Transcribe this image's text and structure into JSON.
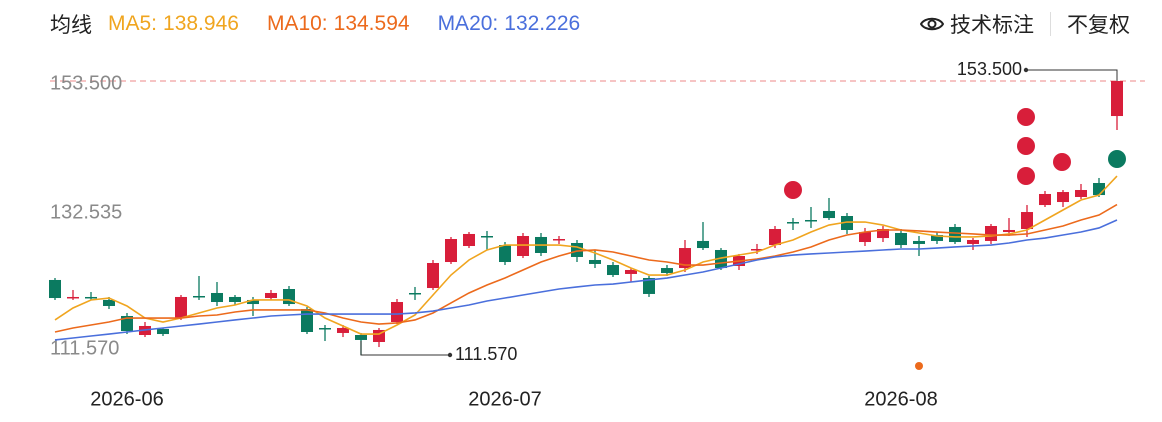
{
  "header": {
    "ma_title": "均线",
    "annotate_button": "技术标注",
    "adjust_button": "不复权"
  },
  "chart_data": {
    "type": "candlestick",
    "categories": [
      null,
      null,
      null,
      null,
      "2026-06",
      null,
      null,
      null,
      null,
      null,
      null,
      null,
      null,
      null,
      null,
      null,
      null,
      null,
      null,
      null,
      null,
      null,
      null,
      null,
      null,
      "2026-07",
      null,
      null,
      null,
      null,
      null,
      null,
      null,
      null,
      null,
      null,
      null,
      null,
      null,
      null,
      null,
      null,
      null,
      null,
      null,
      null,
      null,
      "2026-08",
      null,
      null,
      null,
      null,
      null,
      null,
      null,
      null,
      null,
      null,
      null,
      null
    ],
    "open": [
      123.05,
      120.29,
      120.45,
      119.99,
      117.54,
      114.63,
      115.55,
      117.23,
      120.6,
      121.06,
      120.45,
      119.99,
      120.29,
      121.67,
      118.61,
      115.7,
      114.94,
      114.63,
      113.56,
      116.62,
      121.06,
      121.82,
      125.8,
      128.25,
      129.78,
      128.4,
      126.72,
      129.63,
      129.17,
      128.71,
      126.11,
      125.34,
      123.97,
      123.35,
      124.88,
      124.88,
      129.02,
      127.64,
      125.19,
      127.64,
      128.4,
      131.92,
      132.23,
      133.61,
      132.84,
      128.86,
      129.47,
      130.24,
      129.02,
      129.93,
      131.16,
      128.56,
      129.02,
      130.39,
      130.85,
      134.52,
      134.98,
      135.75,
      137.89,
      148.14
    ],
    "high": [
      123.35,
      121.52,
      121.21,
      120.45,
      118.0,
      116.62,
      115.7,
      120.75,
      123.66,
      122.74,
      120.75,
      120.45,
      121.52,
      122.13,
      118.92,
      116.16,
      116.16,
      114.94,
      115.7,
      120.14,
      121.98,
      126.11,
      129.63,
      130.39,
      130.55,
      128.86,
      130.24,
      130.24,
      129.78,
      129.17,
      127.64,
      125.8,
      124.88,
      123.66,
      125.34,
      129.17,
      131.92,
      127.94,
      127.03,
      128.56,
      131.31,
      132.53,
      134.22,
      135.6,
      133.3,
      131.01,
      131.31,
      130.85,
      129.78,
      130.39,
      131.62,
      129.47,
      131.62,
      132.53,
      134.52,
      136.67,
      136.82,
      137.74,
      138.66,
      153.5
    ],
    "low": [
      119.99,
      119.99,
      119.99,
      118.61,
      114.78,
      114.32,
      114.48,
      116.93,
      119.99,
      119.07,
      119.22,
      117.54,
      119.99,
      119.07,
      114.78,
      113.71,
      114.32,
      111.57,
      112.79,
      116.31,
      119.99,
      121.52,
      125.5,
      127.94,
      127.64,
      125.34,
      126.41,
      126.72,
      128.56,
      125.8,
      124.88,
      123.51,
      122.74,
      120.45,
      123.66,
      124.27,
      127.64,
      124.58,
      124.58,
      127.03,
      127.94,
      130.7,
      131.01,
      132.23,
      130.09,
      128.25,
      128.86,
      127.94,
      126.72,
      128.56,
      128.56,
      127.64,
      128.56,
      129.78,
      129.63,
      134.22,
      134.22,
      135.44,
      135.75,
      146.0
    ],
    "close": [
      120.29,
      120.45,
      120.29,
      119.07,
      115.24,
      116.01,
      114.78,
      120.45,
      120.45,
      119.68,
      119.68,
      119.37,
      121.06,
      119.37,
      115.09,
      115.55,
      115.7,
      113.87,
      115.4,
      119.68,
      120.91,
      125.65,
      129.32,
      130.09,
      129.63,
      125.8,
      129.78,
      127.18,
      129.32,
      126.57,
      125.5,
      123.81,
      124.58,
      120.91,
      124.12,
      127.94,
      127.94,
      124.88,
      126.72,
      127.79,
      130.85,
      131.77,
      132.08,
      132.53,
      130.7,
      130.39,
      130.85,
      128.4,
      128.56,
      129.02,
      128.86,
      129.17,
      131.31,
      130.7,
      133.45,
      136.21,
      136.51,
      136.82,
      136.05,
      153.5
    ],
    "up_color": "#d81e3a",
    "down_color": "#0b7a60",
    "series": [
      {
        "name": "MA5:",
        "color": "#f0a51f",
        "values": [
          116.93,
          118.76,
          119.99,
          120.29,
          119.07,
          117.23,
          116.62,
          117.23,
          118.0,
          118.76,
          119.22,
          119.99,
          119.99,
          119.99,
          119.07,
          117.23,
          116.01,
          114.78,
          114.78,
          116.16,
          117.69,
          120.75,
          123.81,
          126.11,
          127.64,
          128.4,
          128.4,
          128.4,
          128.4,
          128.1,
          127.18,
          126.11,
          124.88,
          123.81,
          123.81,
          124.58,
          125.8,
          126.41,
          126.87,
          127.33,
          128.4,
          129.17,
          130.39,
          131.46,
          131.92,
          131.92,
          131.46,
          130.7,
          130.24,
          129.78,
          129.63,
          129.63,
          129.78,
          130.09,
          130.7,
          132.23,
          133.76,
          135.29,
          136.05,
          138.946
        ]
      },
      {
        "name": "MA10:",
        "color": "#ec6a1c",
        "values": [
          115.09,
          115.7,
          116.16,
          116.62,
          117.23,
          117.23,
          117.23,
          117.23,
          117.54,
          117.69,
          118.15,
          118.46,
          118.46,
          118.46,
          118.46,
          118.0,
          117.23,
          116.62,
          116.31,
          116.47,
          116.93,
          118.0,
          119.53,
          121.06,
          122.28,
          123.35,
          124.58,
          125.8,
          126.72,
          127.48,
          127.64,
          127.33,
          126.72,
          126.11,
          125.8,
          125.34,
          125.34,
          125.65,
          125.95,
          126.26,
          126.72,
          127.33,
          128.1,
          129.17,
          129.93,
          130.39,
          130.7,
          130.7,
          130.55,
          130.39,
          130.24,
          130.09,
          129.93,
          129.93,
          130.09,
          130.7,
          131.31,
          132.23,
          132.99,
          134.594
        ]
      },
      {
        "name": "MA20:",
        "color": "#4a6fdc",
        "values": [
          113.87,
          114.17,
          114.48,
          114.78,
          115.09,
          115.4,
          115.7,
          116.01,
          116.31,
          116.62,
          116.93,
          117.23,
          117.54,
          117.69,
          117.84,
          117.84,
          117.84,
          117.84,
          117.84,
          117.84,
          118.0,
          118.3,
          118.76,
          119.22,
          119.83,
          120.29,
          120.75,
          121.21,
          121.67,
          121.98,
          122.28,
          122.43,
          122.74,
          123.05,
          123.35,
          123.81,
          124.27,
          124.88,
          125.5,
          126.11,
          126.57,
          126.87,
          127.03,
          127.18,
          127.33,
          127.48,
          127.64,
          127.79,
          127.79,
          127.94,
          128.1,
          128.25,
          128.4,
          128.71,
          129.17,
          129.47,
          129.93,
          130.39,
          131.01,
          132.226
        ]
      }
    ],
    "ylim": [
      111.57,
      153.5
    ],
    "yticks": [
      {
        "value": 111.57,
        "label": "111.570"
      },
      {
        "value": 132.535,
        "label": "132.535"
      },
      {
        "value": 153.5,
        "label": "153.500"
      }
    ],
    "max_label": {
      "value": 153.5,
      "label": "153.500"
    },
    "min_label": {
      "value": 111.57,
      "label": "111.570"
    }
  }
}
